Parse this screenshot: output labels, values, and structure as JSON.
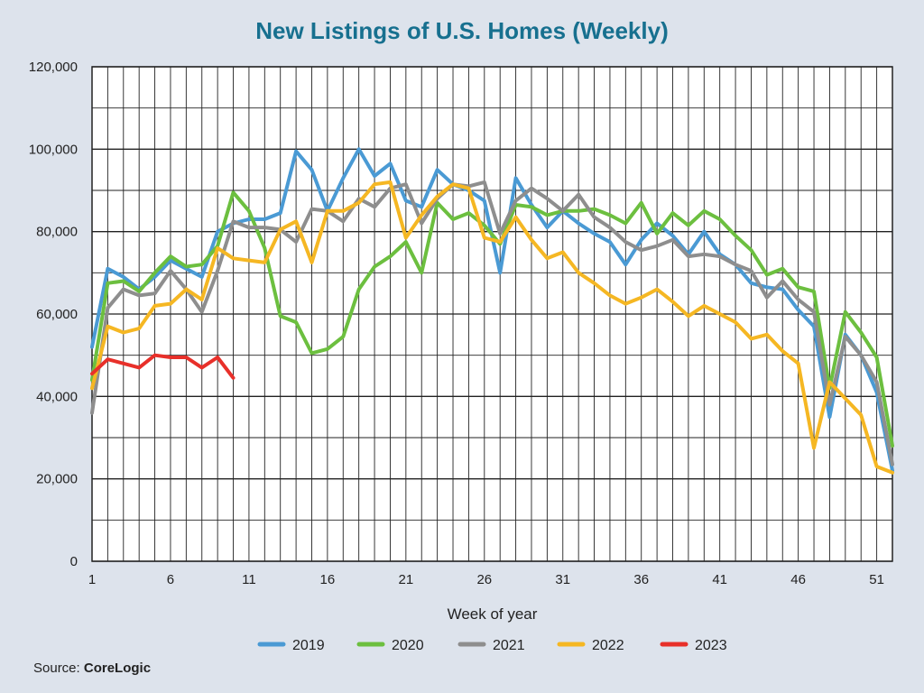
{
  "chart_data": {
    "type": "line",
    "title": "New Listings of U.S. Homes (Weekly)",
    "xlabel": "Week of year",
    "ylabel": "",
    "source_label": "Source:",
    "source_name": "CoreLogic",
    "xlim": [
      1,
      52
    ],
    "ylim": [
      0,
      120000
    ],
    "x_ticks": [
      1,
      6,
      11,
      16,
      21,
      26,
      31,
      36,
      41,
      46,
      51
    ],
    "y_ticks": [
      0,
      20000,
      40000,
      60000,
      80000,
      100000,
      120000
    ],
    "y_tick_labels": [
      "0",
      "20,000",
      "40,000",
      "60,000",
      "80,000",
      "100,000",
      "120,000"
    ],
    "grid": true,
    "legend_position": "bottom",
    "series": [
      {
        "name": "2019",
        "color": "#4a9ad4",
        "values": [
          52000,
          71000,
          69000,
          66000,
          69000,
          73000,
          71000,
          69000,
          80000,
          82000,
          83000,
          83000,
          84500,
          99500,
          95000,
          85000,
          93000,
          100000,
          93500,
          96500,
          87500,
          86000,
          95000,
          91500,
          90000,
          87500,
          70000,
          93000,
          86500,
          81000,
          85000,
          82000,
          79500,
          77500,
          72000,
          78000,
          82000,
          79000,
          74500,
          80000,
          74500,
          72000,
          67500,
          66500,
          66000,
          61000,
          57000,
          35000,
          55000,
          50000,
          41000,
          22000
        ]
      },
      {
        "name": "2020",
        "color": "#6cbf3f",
        "values": [
          44000,
          67500,
          68000,
          65500,
          70000,
          74000,
          71500,
          72000,
          76500,
          89500,
          85000,
          76000,
          59500,
          58000,
          50500,
          51500,
          54500,
          66000,
          71500,
          74000,
          77500,
          70000,
          87000,
          83000,
          84500,
          81500,
          77000,
          86500,
          86000,
          84000,
          85000,
          85000,
          85500,
          84000,
          82000,
          87000,
          79500,
          84500,
          81500,
          85000,
          83000,
          79000,
          75500,
          69500,
          71000,
          66500,
          65500,
          42000,
          60500,
          55500,
          49500,
          28000
        ]
      },
      {
        "name": "2021",
        "color": "#8e8e8e",
        "values": [
          36000,
          61500,
          66000,
          64500,
          65000,
          70500,
          66000,
          60500,
          70500,
          82500,
          81000,
          81000,
          80500,
          77500,
          85500,
          85000,
          82500,
          88000,
          86000,
          90500,
          91500,
          82000,
          88000,
          91500,
          91000,
          92000,
          79500,
          87500,
          90500,
          88000,
          85000,
          89000,
          83500,
          81000,
          77500,
          75500,
          76500,
          78000,
          74000,
          74500,
          74000,
          72000,
          70500,
          64000,
          68000,
          63500,
          60500,
          38000,
          54500,
          50000,
          43500,
          23500
        ]
      },
      {
        "name": "2022",
        "color": "#f5b723",
        "values": [
          42000,
          57000,
          55500,
          56500,
          62000,
          62500,
          66000,
          63500,
          76000,
          73500,
          73000,
          72500,
          80500,
          82500,
          72500,
          85000,
          85000,
          87000,
          91500,
          92000,
          78500,
          84000,
          88500,
          91500,
          90500,
          78500,
          77500,
          83500,
          78000,
          73500,
          75000,
          70000,
          67500,
          64500,
          62500,
          64000,
          66000,
          63000,
          59500,
          62000,
          60000,
          58000,
          54000,
          55000,
          51000,
          48000,
          27500,
          43500,
          39500,
          35500,
          23000,
          21500
        ]
      },
      {
        "name": "2023",
        "color": "#e8302a",
        "values": [
          45500,
          49000,
          48000,
          47000,
          50000,
          49500,
          49500,
          47000,
          49500,
          44500
        ]
      }
    ]
  }
}
